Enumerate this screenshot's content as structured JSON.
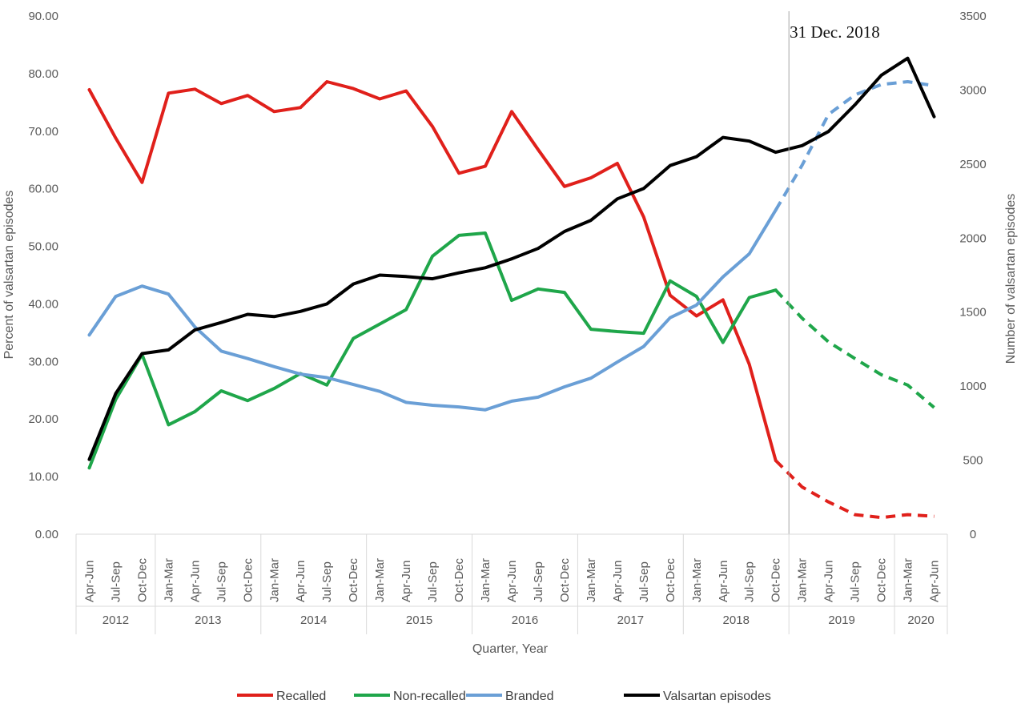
{
  "chart_data": {
    "type": "line",
    "x_quarters": [
      "Apr-Jun",
      "Jul-Sep",
      "Oct-Dec",
      "Jan-Mar",
      "Apr-Jun",
      "Jul-Sep",
      "Oct-Dec",
      "Jan-Mar",
      "Apr-Jun",
      "Jul-Sep",
      "Oct-Dec",
      "Jan-Mar",
      "Apr-Jun",
      "Jul-Sep",
      "Oct-Dec",
      "Jan-Mar",
      "Apr-Jun",
      "Jul-Sep",
      "Oct-Dec",
      "Jan-Mar",
      "Apr-Jun",
      "Jul-Sep",
      "Oct-Dec",
      "Jan-Mar",
      "Apr-Jun",
      "Jul-Sep",
      "Oct-Dec",
      "Jan-Mar",
      "Apr-Jun",
      "Jul-Sep",
      "Oct-Dec",
      "Jan-Mar",
      "Apr-Jun"
    ],
    "year_groups": [
      {
        "label": "2012",
        "count": 3
      },
      {
        "label": "2013",
        "count": 4
      },
      {
        "label": "2014",
        "count": 4
      },
      {
        "label": "2015",
        "count": 4
      },
      {
        "label": "2016",
        "count": 4
      },
      {
        "label": "2017",
        "count": 4
      },
      {
        "label": "2018",
        "count": 4
      },
      {
        "label": "2019",
        "count": 4
      },
      {
        "label": "2020",
        "count": 2
      }
    ],
    "xlabel": "Quarter, Year",
    "ylabel_left": "Percent of valsartan episodes",
    "ylabel_right": "Number  of valsartan episodes",
    "ylim_left": [
      0,
      90
    ],
    "yticks_left": [
      "0.00",
      "10.00",
      "20.00",
      "30.00",
      "40.00",
      "50.00",
      "60.00",
      "70.00",
      "80.00",
      "90.00"
    ],
    "ylim_right": [
      0,
      3500
    ],
    "yticks_right": [
      "0",
      "500",
      "1000",
      "1500",
      "2000",
      "2500",
      "3000",
      "3500"
    ],
    "annotation": {
      "label": "31 Dec. 2018",
      "after_index": 26
    },
    "dashed_from_index": 26,
    "grid": false,
    "legend_position": "bottom",
    "series": [
      {
        "name": "Recalled",
        "axis": "left",
        "color": "#e0201b",
        "values": [
          77.2,
          68.8,
          61.1,
          76.6,
          77.3,
          74.8,
          76.2,
          73.4,
          74.1,
          78.6,
          77.4,
          75.6,
          77.0,
          70.8,
          62.7,
          63.9,
          73.4,
          66.8,
          60.4,
          61.9,
          64.4,
          55.1,
          41.5,
          37.9,
          40.7,
          29.5,
          12.8,
          8.2,
          5.6,
          3.4,
          2.9,
          3.4,
          3.1
        ]
      },
      {
        "name": "Non-recalled",
        "axis": "left",
        "color": "#1fa64a",
        "values": [
          11.5,
          23.4,
          31.2,
          19.0,
          21.3,
          24.9,
          23.2,
          25.3,
          27.9,
          25.9,
          34.0,
          36.5,
          39.0,
          48.3,
          51.9,
          52.3,
          40.6,
          42.6,
          42.0,
          35.6,
          35.2,
          34.9,
          44.0,
          41.3,
          33.3,
          41.1,
          42.4,
          37.5,
          33.4,
          30.5,
          27.7,
          25.9,
          22.0
        ]
      },
      {
        "name": "Branded",
        "axis": "left",
        "color": "#6a9fd6",
        "values": [
          34.6,
          41.3,
          43.1,
          41.7,
          36.0,
          31.8,
          30.5,
          29.1,
          27.8,
          27.2,
          26.0,
          24.8,
          22.9,
          22.4,
          22.1,
          21.6,
          23.1,
          23.8,
          25.6,
          27.1,
          29.9,
          32.6,
          37.6,
          39.8,
          44.7,
          48.7,
          56.3,
          64.1,
          72.9,
          76.3,
          78.1,
          78.6,
          77.9
        ]
      },
      {
        "name": "Valsartan episodes",
        "axis": "right",
        "color": "#000000",
        "values": [
          505,
          950,
          1220,
          1245,
          1380,
          1430,
          1485,
          1470,
          1505,
          1555,
          1690,
          1750,
          1740,
          1725,
          1765,
          1800,
          1860,
          1930,
          2045,
          2120,
          2265,
          2335,
          2490,
          2550,
          2680,
          2655,
          2580,
          2625,
          2720,
          2900,
          3100,
          3215,
          2820
        ]
      }
    ]
  }
}
